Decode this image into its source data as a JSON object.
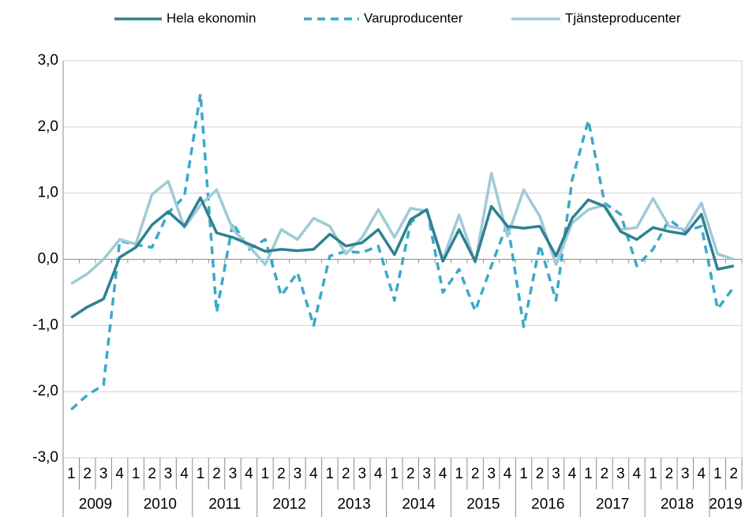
{
  "chart_data": {
    "type": "line",
    "categories": [
      "1",
      "2",
      "3",
      "4",
      "1",
      "2",
      "3",
      "4",
      "1",
      "2",
      "3",
      "4",
      "1",
      "2",
      "3",
      "4",
      "1",
      "2",
      "3",
      "4",
      "1",
      "2",
      "3",
      "4",
      "1",
      "2",
      "3",
      "4",
      "1",
      "2",
      "3",
      "4",
      "1",
      "2",
      "3",
      "4",
      "1",
      "2",
      "3",
      "4",
      "1",
      "2"
    ],
    "years": [
      "2009",
      "2010",
      "2011",
      "2012",
      "2013",
      "2014",
      "2015",
      "2016",
      "2017",
      "2018",
      "2019"
    ],
    "series": [
      {
        "name": "Hela ekonomin",
        "color": "#2e8191",
        "dash": false,
        "values": [
          -0.88,
          -0.72,
          -0.6,
          0.03,
          0.18,
          0.52,
          0.72,
          0.5,
          0.93,
          0.4,
          0.33,
          0.23,
          0.12,
          0.15,
          0.13,
          0.15,
          0.38,
          0.2,
          0.25,
          0.45,
          0.07,
          0.6,
          0.75,
          -0.03,
          0.45,
          -0.03,
          0.8,
          0.5,
          0.47,
          0.5,
          0.05,
          0.62,
          0.9,
          0.8,
          0.42,
          0.3,
          0.48,
          0.42,
          0.38,
          0.68,
          -0.15,
          -0.1
        ]
      },
      {
        "name": "Varuproducenter",
        "color": "#3aa9c8",
        "dash": true,
        "values": [
          -2.27,
          -2.05,
          -1.9,
          0.28,
          0.22,
          0.18,
          0.7,
          0.95,
          2.5,
          -0.8,
          0.55,
          0.15,
          0.3,
          -0.55,
          -0.2,
          -1.0,
          0.05,
          0.12,
          0.1,
          0.2,
          -0.62,
          0.55,
          0.78,
          -0.5,
          -0.15,
          -0.78,
          -0.1,
          0.55,
          -1.02,
          0.22,
          -0.62,
          1.2,
          2.1,
          0.85,
          0.68,
          -0.1,
          0.15,
          0.6,
          0.42,
          0.5,
          -0.75,
          -0.42
        ]
      },
      {
        "name": "Tjänsteproducenter",
        "color": "#9fcad7",
        "dash": false,
        "values": [
          -0.37,
          -0.22,
          0.0,
          0.3,
          0.23,
          0.98,
          1.18,
          0.48,
          0.82,
          1.05,
          0.45,
          0.2,
          -0.08,
          0.45,
          0.3,
          0.62,
          0.5,
          0.08,
          0.33,
          0.75,
          0.33,
          0.77,
          0.73,
          0.0,
          0.67,
          -0.05,
          1.3,
          0.35,
          1.05,
          0.65,
          -0.08,
          0.55,
          0.75,
          0.82,
          0.45,
          0.48,
          0.92,
          0.5,
          0.45,
          0.85,
          0.08,
          0.0
        ]
      }
    ],
    "ylim": [
      -3,
      3
    ],
    "yticks": [
      {
        "value": -3,
        "label": "-3,0"
      },
      {
        "value": -2,
        "label": "-2,0"
      },
      {
        "value": -1,
        "label": "-1,0"
      },
      {
        "value": 0,
        "label": "0,0"
      },
      {
        "value": 1,
        "label": "1,0"
      },
      {
        "value": 2,
        "label": "2,0"
      },
      {
        "value": 3,
        "label": "3,0"
      }
    ],
    "grid": true,
    "legend": "top"
  }
}
